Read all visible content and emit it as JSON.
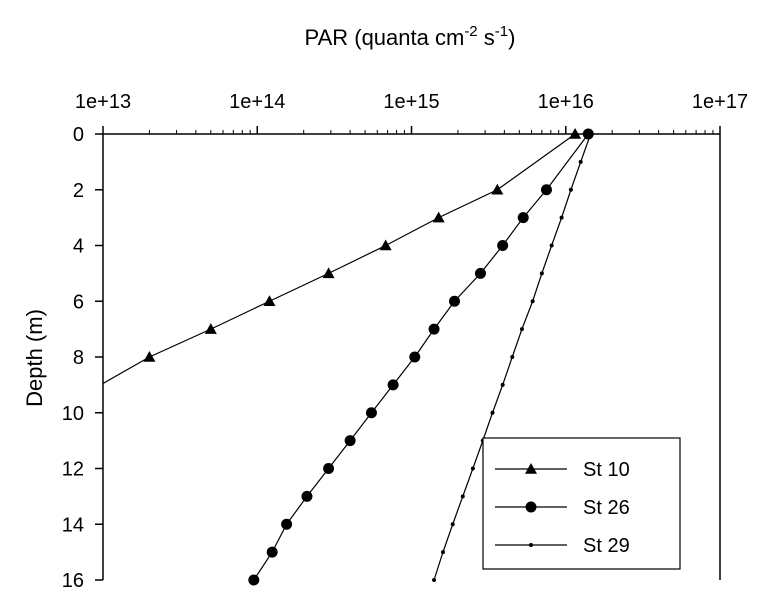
{
  "chart_data": {
    "type": "line",
    "title": "",
    "xlabel": "PAR (quanta cm-2 s-1)",
    "xlabel_parts": {
      "base": "PAR (quanta cm",
      "sup1": "-2",
      "mid": " s",
      "sup2": "-1",
      "end": ")"
    },
    "ylabel": "Depth (m)",
    "x_scale": "log",
    "x_axis_position": "top",
    "y_inverted": true,
    "xlim": [
      10000000000000.0,
      1e+17
    ],
    "ylim": [
      0,
      16
    ],
    "x_ticks": [
      10000000000000.0,
      100000000000000.0,
      1000000000000000.0,
      1e+16,
      1e+17
    ],
    "x_tick_labels": [
      "1e+13",
      "1e+14",
      "1e+15",
      "1e+16",
      "1e+17"
    ],
    "y_ticks": [
      0,
      2,
      4,
      6,
      8,
      10,
      12,
      14,
      16
    ],
    "y_tick_labels": [
      "0",
      "2",
      "4",
      "6",
      "8",
      "10",
      "12",
      "14",
      "16"
    ],
    "grid": false,
    "legend_position": "bottom-right",
    "series": [
      {
        "name": "St 10",
        "marker": "triangle",
        "points": [
          {
            "x": 1.15e+16,
            "y": 0
          },
          {
            "x": 3600000000000000.0,
            "y": 2
          },
          {
            "x": 1500000000000000.0,
            "y": 3
          },
          {
            "x": 680000000000000.0,
            "y": 4
          },
          {
            "x": 290000000000000.0,
            "y": 5
          },
          {
            "x": 120000000000000.0,
            "y": 6
          },
          {
            "x": 50000000000000.0,
            "y": 7
          },
          {
            "x": 20000000000000.0,
            "y": 8
          }
        ],
        "line_extends_to": {
          "x": 10000000000000.0,
          "y": 8.95
        }
      },
      {
        "name": "St 26",
        "marker": "circle",
        "points": [
          {
            "x": 1.4e+16,
            "y": 0
          },
          {
            "x": 7500000000000000.0,
            "y": 2
          },
          {
            "x": 5300000000000000.0,
            "y": 3
          },
          {
            "x": 3900000000000000.0,
            "y": 4
          },
          {
            "x": 2800000000000000.0,
            "y": 5
          },
          {
            "x": 1900000000000000.0,
            "y": 6
          },
          {
            "x": 1400000000000000.0,
            "y": 7
          },
          {
            "x": 1050000000000000.0,
            "y": 8
          },
          {
            "x": 760000000000000.0,
            "y": 9
          },
          {
            "x": 550000000000000.0,
            "y": 10
          },
          {
            "x": 400000000000000.0,
            "y": 11
          },
          {
            "x": 290000000000000.0,
            "y": 12
          },
          {
            "x": 210000000000000.0,
            "y": 13
          },
          {
            "x": 155000000000000.0,
            "y": 14
          },
          {
            "x": 125000000000000.0,
            "y": 15
          },
          {
            "x": 95000000000000.0,
            "y": 16
          }
        ]
      },
      {
        "name": "St 29",
        "marker": "dot",
        "points": [
          {
            "x": 1.45e+16,
            "y": 0
          },
          {
            "x": 1.25e+16,
            "y": 1
          },
          {
            "x": 1.08e+16,
            "y": 2
          },
          {
            "x": 9400000000000000.0,
            "y": 3
          },
          {
            "x": 8100000000000000.0,
            "y": 4
          },
          {
            "x": 7000000000000000.0,
            "y": 5
          },
          {
            "x": 6100000000000000.0,
            "y": 6
          },
          {
            "x": 5200000000000000.0,
            "y": 7
          },
          {
            "x": 4500000000000000.0,
            "y": 8
          },
          {
            "x": 3900000000000000.0,
            "y": 9
          },
          {
            "x": 3350000000000000.0,
            "y": 10
          },
          {
            "x": 2900000000000000.0,
            "y": 11
          },
          {
            "x": 2500000000000000.0,
            "y": 12
          },
          {
            "x": 2150000000000000.0,
            "y": 13
          },
          {
            "x": 1850000000000000.0,
            "y": 14
          },
          {
            "x": 1600000000000000.0,
            "y": 15
          },
          {
            "x": 1400000000000000.0,
            "y": 16
          }
        ]
      }
    ]
  }
}
